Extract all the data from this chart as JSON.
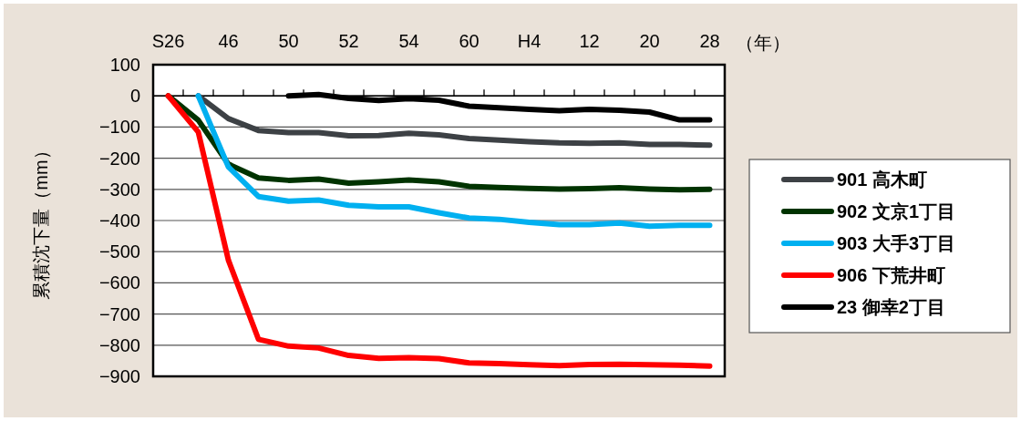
{
  "chart_data": {
    "type": "line",
    "xlabel": "（年）",
    "ylabel": "累積沈下量（mm）",
    "categories": [
      "S26",
      null,
      "46",
      null,
      "50",
      null,
      "52",
      null,
      "54",
      null,
      "60",
      null,
      "H4",
      null,
      "12",
      null,
      "20",
      null,
      "28"
    ],
    "ylim": [
      -900,
      100
    ],
    "yticks": [
      100,
      0,
      -100,
      -200,
      -300,
      -400,
      -500,
      -600,
      -700,
      -800,
      -900
    ],
    "grid": "y",
    "legend": "right",
    "line_style": "solid",
    "marker": "none",
    "series": [
      {
        "name": "901 高木町",
        "color": "#3d4145",
        "values": [
          null,
          0,
          -73,
          -111,
          -118,
          -118,
          -128,
          -127,
          -120,
          -125,
          -137,
          -142,
          -147,
          -151,
          -152,
          -151,
          -156,
          -156,
          -158
        ]
      },
      {
        "name": "902 文京1丁目",
        "color": "#003300",
        "values": [
          0,
          -78,
          -219,
          -263,
          -271,
          -267,
          -280,
          -276,
          -270,
          -276,
          -290,
          -294,
          -297,
          -299,
          -298,
          -295,
          -299,
          -301,
          -300
        ]
      },
      {
        "name": "903 大手3丁目",
        "color": "#00b0f0",
        "values": [
          null,
          0,
          -228,
          -323,
          -338,
          -334,
          -351,
          -356,
          -356,
          -375,
          -392,
          -396,
          -406,
          -413,
          -413,
          -408,
          -418,
          -415,
          -415
        ]
      },
      {
        "name": "906 下荒井町",
        "color": "#ff0000",
        "values": [
          0,
          -116,
          -527,
          -781,
          -803,
          -809,
          -833,
          -842,
          -840,
          -843,
          -857,
          -859,
          -863,
          -866,
          -862,
          -861,
          -863,
          -864,
          -867
        ]
      },
      {
        "name": "23 御幸2丁目",
        "color": "#000000",
        "values": [
          null,
          null,
          null,
          null,
          0,
          4,
          -8,
          -15,
          -9,
          -14,
          -33,
          -38,
          -43,
          -48,
          -43,
          -46,
          -52,
          -77,
          -77
        ]
      }
    ]
  }
}
